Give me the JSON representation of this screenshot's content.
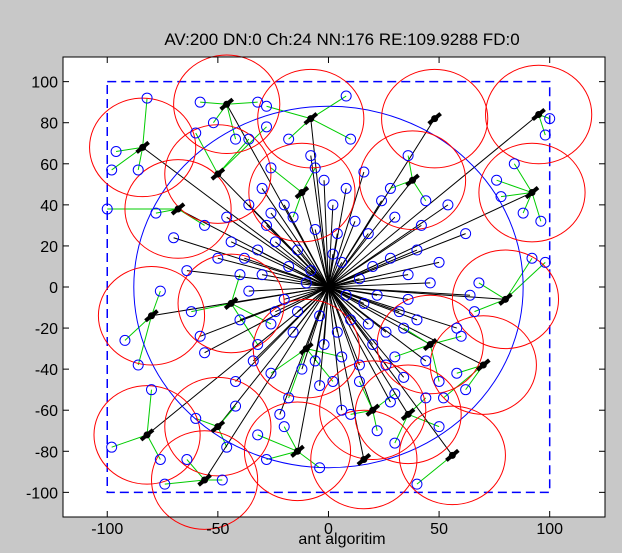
{
  "chart_data": {
    "type": "scatter",
    "title": "AV:200   DN:0   Ch:24   NN:176   RE:109.9288   FD:0",
    "xlabel": "ant algoritim",
    "ylabel": "",
    "xlim": [
      -120,
      125
    ],
    "ylim": [
      -112,
      112
    ],
    "xticks": [
      -100,
      -50,
      0,
      50,
      100
    ],
    "yticks": [
      -100,
      -80,
      -60,
      -40,
      -20,
      0,
      20,
      40,
      60,
      80,
      100
    ],
    "grid": false,
    "legend": "none",
    "sink": [
      0,
      0
    ],
    "field_bounds": {
      "x": [
        -100,
        100
      ],
      "y": [
        -100,
        100
      ]
    },
    "coverage_circle": {
      "center": [
        0,
        0
      ],
      "radius": 88
    },
    "cluster_heads": [
      {
        "x": -46,
        "y": 89,
        "nodes": [
          [
            -58,
            90
          ],
          [
            -42,
            72
          ],
          [
            -32,
            90
          ],
          [
            -52,
            80
          ]
        ]
      },
      {
        "x": -84,
        "y": 68,
        "nodes": [
          [
            -96,
            66
          ],
          [
            -82,
            92
          ],
          [
            -98,
            57
          ],
          [
            -86,
            57
          ]
        ]
      },
      {
        "x": -8,
        "y": 82,
        "nodes": [
          [
            -28,
            88
          ],
          [
            8,
            93
          ],
          [
            -18,
            72
          ],
          [
            10,
            72
          ]
        ]
      },
      {
        "x": 48,
        "y": 82,
        "nodes": []
      },
      {
        "x": 95,
        "y": 84,
        "nodes": [
          [
            98,
            74
          ],
          [
            100,
            82
          ]
        ]
      },
      {
        "x": -50,
        "y": 55,
        "nodes": [
          [
            -60,
            75
          ],
          [
            -36,
            72
          ],
          [
            -28,
            78
          ]
        ]
      },
      {
        "x": -68,
        "y": 38,
        "nodes": [
          [
            -100,
            38
          ],
          [
            -78,
            36
          ],
          [
            -56,
            30
          ]
        ]
      },
      {
        "x": -12,
        "y": 46,
        "nodes": [
          [
            -26,
            58
          ],
          [
            -6,
            58
          ],
          [
            -16,
            34
          ]
        ]
      },
      {
        "x": 38,
        "y": 52,
        "nodes": [
          [
            36,
            64
          ],
          [
            28,
            48
          ],
          [
            44,
            42
          ]
        ]
      },
      {
        "x": 92,
        "y": 46,
        "nodes": [
          [
            84,
            60
          ],
          [
            78,
            44
          ],
          [
            96,
            32
          ],
          [
            88,
            36
          ],
          [
            76,
            52
          ]
        ]
      },
      {
        "x": -80,
        "y": -14,
        "nodes": [
          [
            -92,
            -26
          ],
          [
            -76,
            -2
          ],
          [
            -86,
            -38
          ]
        ]
      },
      {
        "x": -44,
        "y": -8,
        "nodes": [
          [
            -62,
            -12
          ],
          [
            -40,
            6
          ],
          [
            -26,
            -18
          ],
          [
            -32,
            -28
          ]
        ]
      },
      {
        "x": 80,
        "y": -6,
        "nodes": [
          [
            98,
            12
          ],
          [
            68,
            2
          ],
          [
            66,
            -12
          ],
          [
            92,
            14
          ]
        ]
      },
      {
        "x": -10,
        "y": -30,
        "nodes": [
          [
            -26,
            -42
          ],
          [
            2,
            -46
          ],
          [
            -18,
            -54
          ],
          [
            6,
            -34
          ]
        ]
      },
      {
        "x": 46,
        "y": -28,
        "nodes": [
          [
            30,
            -34
          ],
          [
            50,
            -46
          ],
          [
            60,
            -24
          ],
          [
            34,
            -20
          ]
        ]
      },
      {
        "x": 70,
        "y": -38,
        "nodes": [
          [
            58,
            -42
          ],
          [
            52,
            -54
          ],
          [
            62,
            -50
          ]
        ]
      },
      {
        "x": 20,
        "y": -60,
        "nodes": [
          [
            14,
            -46
          ],
          [
            10,
            -62
          ],
          [
            22,
            -70
          ],
          [
            30,
            -52
          ]
        ]
      },
      {
        "x": -50,
        "y": -68,
        "nodes": [
          [
            -42,
            -58
          ],
          [
            -60,
            -64
          ],
          [
            -46,
            -78
          ]
        ]
      },
      {
        "x": 36,
        "y": -62,
        "nodes": [
          [
            50,
            -68
          ],
          [
            30,
            -76
          ],
          [
            44,
            -54
          ]
        ]
      },
      {
        "x": -14,
        "y": -80,
        "nodes": [
          [
            -28,
            -84
          ],
          [
            -4,
            -88
          ],
          [
            -20,
            -68
          ],
          [
            -32,
            -72
          ]
        ]
      },
      {
        "x": -82,
        "y": -72,
        "nodes": [
          [
            -98,
            -78
          ],
          [
            -80,
            -50
          ],
          [
            -76,
            -84
          ]
        ]
      },
      {
        "x": -56,
        "y": -94,
        "nodes": [
          [
            -64,
            -84
          ],
          [
            -48,
            -94
          ],
          [
            -74,
            -96
          ]
        ]
      },
      {
        "x": 56,
        "y": -82,
        "nodes": [
          [
            40,
            -96
          ]
        ]
      },
      {
        "x": 16,
        "y": -84,
        "nodes": []
      }
    ],
    "direct_nodes": [
      [
        -8,
        8
      ],
      [
        6,
        12
      ],
      [
        -14,
        18
      ],
      [
        14,
        4
      ],
      [
        -20,
        -6
      ],
      [
        22,
        -4
      ],
      [
        -4,
        -14
      ],
      [
        10,
        -16
      ],
      [
        -30,
        6
      ],
      [
        28,
        14
      ],
      [
        -6,
        28
      ],
      [
        18,
        26
      ],
      [
        -24,
        22
      ],
      [
        26,
        -22
      ],
      [
        -16,
        -22
      ],
      [
        12,
        32
      ],
      [
        2,
        40
      ],
      [
        -38,
        14
      ],
      [
        36,
        -6
      ],
      [
        -36,
        -2
      ],
      [
        40,
        18
      ],
      [
        -12,
        -40
      ],
      [
        20,
        -28
      ],
      [
        4,
        -22
      ],
      [
        -28,
        30
      ],
      [
        30,
        34
      ],
      [
        -44,
        22
      ],
      [
        46,
        2
      ],
      [
        -2,
        52
      ],
      [
        8,
        48
      ],
      [
        -20,
        40
      ],
      [
        24,
        42
      ],
      [
        14,
        -38
      ],
      [
        -34,
        -36
      ],
      [
        34,
        -44
      ],
      [
        -4,
        -48
      ],
      [
        42,
        30
      ],
      [
        -46,
        34
      ],
      [
        50,
        12
      ],
      [
        -50,
        14
      ],
      [
        54,
        40
      ],
      [
        -8,
        64
      ],
      [
        16,
        56
      ],
      [
        -30,
        48
      ],
      [
        6,
        -60
      ],
      [
        -22,
        -62
      ],
      [
        28,
        -56
      ],
      [
        44,
        -36
      ],
      [
        -42,
        -46
      ],
      [
        58,
        -20
      ],
      [
        -56,
        -32
      ],
      [
        -64,
        8
      ],
      [
        64,
        -4
      ],
      [
        -70,
        24
      ],
      [
        62,
        26
      ],
      [
        -58,
        -24
      ],
      [
        -14,
        -12
      ],
      [
        16,
        -8
      ],
      [
        -10,
        2
      ],
      [
        8,
        -4
      ],
      [
        2,
        16
      ],
      [
        -2,
        -28
      ],
      [
        20,
        10
      ],
      [
        -24,
        -12
      ],
      [
        32,
        -12
      ],
      [
        -32,
        18
      ],
      [
        18,
        -18
      ],
      [
        -18,
        10
      ],
      [
        40,
        -16
      ],
      [
        -40,
        -16
      ],
      [
        4,
        26
      ],
      [
        -6,
        -36
      ],
      [
        26,
        -38
      ],
      [
        -26,
        36
      ],
      [
        36,
        6
      ],
      [
        -36,
        40
      ]
    ]
  }
}
